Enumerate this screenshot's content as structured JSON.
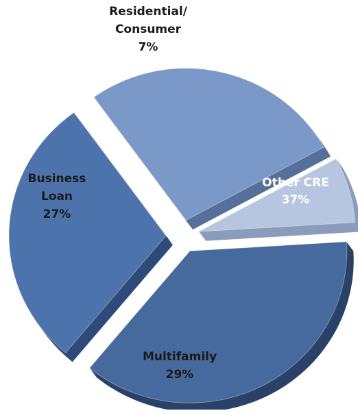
{
  "chart_data": {
    "type": "pie",
    "title": "",
    "categories": [
      "Other CRE",
      "Multifamily",
      "Business Loan",
      "Residential/ Consumer"
    ],
    "values": [
      37,
      29,
      27,
      7
    ],
    "unit": "%",
    "colors": [
      "#466a9e",
      "#4d73ad",
      "#7b99c8",
      "#b7c6e0"
    ],
    "side_colors": [
      "#2a4268",
      "#2f4b78",
      "#55709b",
      "#8a9cbb"
    ],
    "labels": [
      {
        "lines": [
          "Other CRE"
        ],
        "value": "37%",
        "text_color": "#ffffff"
      },
      {
        "lines": [
          "Multifamily"
        ],
        "value": "29%",
        "text_color": "#1a1a1a"
      },
      {
        "lines": [
          "Business",
          "Loan"
        ],
        "value": "27%",
        "text_color": "#1a1a1a"
      },
      {
        "lines": [
          "Residential/",
          "Consumer"
        ],
        "value": "7%",
        "text_color": "#1a1a1a"
      }
    ]
  }
}
